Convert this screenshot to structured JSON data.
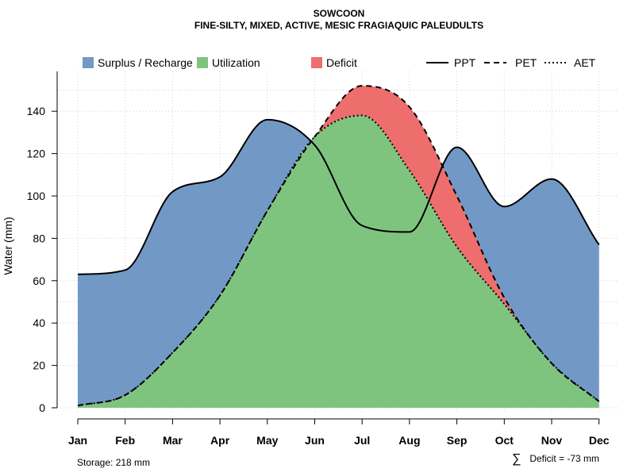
{
  "chart_data": {
    "type": "area",
    "title": "SOWCOON",
    "subtitle": "FINE-SILTY, MIXED, ACTIVE, MESIC FRAGIAQUIC PALEUDULTS",
    "xlabel": "",
    "ylabel": "Water (mm)",
    "ylim": [
      0,
      160
    ],
    "yticks": [
      0,
      20,
      40,
      60,
      80,
      100,
      120,
      140
    ],
    "grid": true,
    "categories": [
      "Jan",
      "Feb",
      "Mar",
      "Apr",
      "May",
      "Jun",
      "Jul",
      "Aug",
      "Sep",
      "Oct",
      "Nov",
      "Dec"
    ],
    "series": [
      {
        "name": "PPT",
        "style": "solid",
        "values": [
          63,
          65,
          102,
          109,
          136,
          124,
          86,
          83,
          123,
          95,
          108,
          77
        ]
      },
      {
        "name": "PET",
        "style": "dashed",
        "values": [
          1,
          6,
          26,
          53,
          93,
          128,
          152,
          142,
          100,
          52,
          21,
          3
        ]
      },
      {
        "name": "AET",
        "style": "dotted",
        "values": [
          1,
          6,
          26,
          53,
          93,
          128,
          138,
          112,
          76,
          49,
          21,
          3
        ]
      }
    ],
    "areas": [
      {
        "name": "Surplus / Recharge",
        "color": "#7299C6"
      },
      {
        "name": "Utilization",
        "color": "#7FC47E"
      },
      {
        "name": "Deficit",
        "color": "#EE6D6D"
      }
    ],
    "legend_position": "top",
    "annotations": {
      "storage": "Storage: 218 mm",
      "deficit_sum": "Deficit = -73 mm",
      "sum_symbol": "∑"
    }
  }
}
